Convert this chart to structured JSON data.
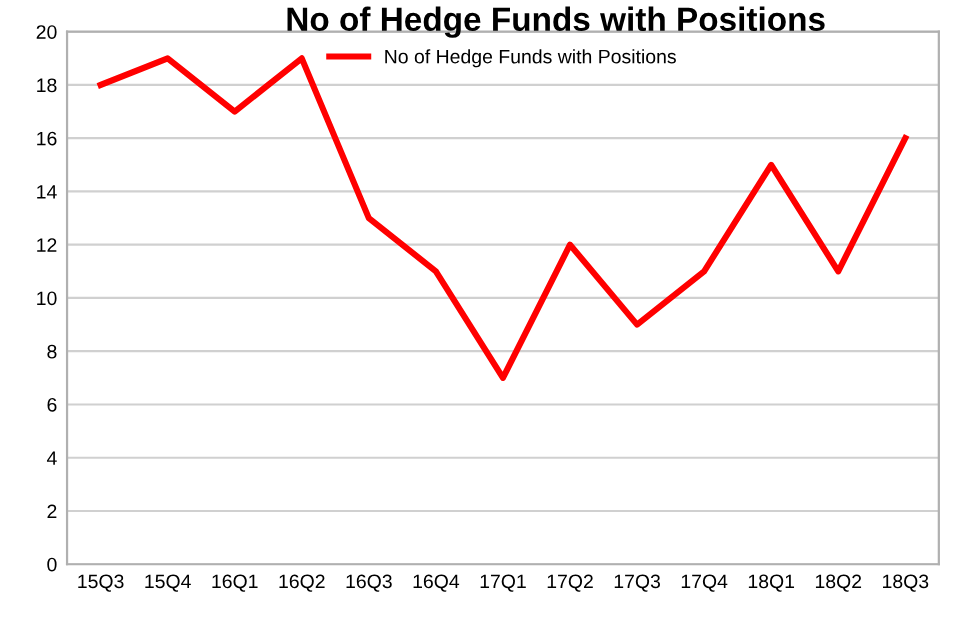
{
  "chart_data": {
    "type": "line",
    "title": "No of Hedge Funds with Positions",
    "categories": [
      "15Q3",
      "15Q4",
      "16Q1",
      "16Q2",
      "16Q3",
      "16Q4",
      "17Q1",
      "17Q2",
      "17Q3",
      "17Q4",
      "18Q1",
      "18Q2",
      "18Q3"
    ],
    "series": [
      {
        "name": "No of Hedge Funds with Positions",
        "color": "#ff0000",
        "values": [
          18,
          19,
          17,
          19,
          13,
          11,
          7,
          12,
          9,
          11,
          15,
          11,
          16
        ]
      }
    ],
    "ylim": [
      0,
      20
    ],
    "yticks": [
      0,
      2,
      4,
      6,
      8,
      10,
      12,
      14,
      16,
      18,
      20
    ],
    "grid": "y",
    "legend": "top",
    "marker": "none",
    "line_style": "solid"
  }
}
